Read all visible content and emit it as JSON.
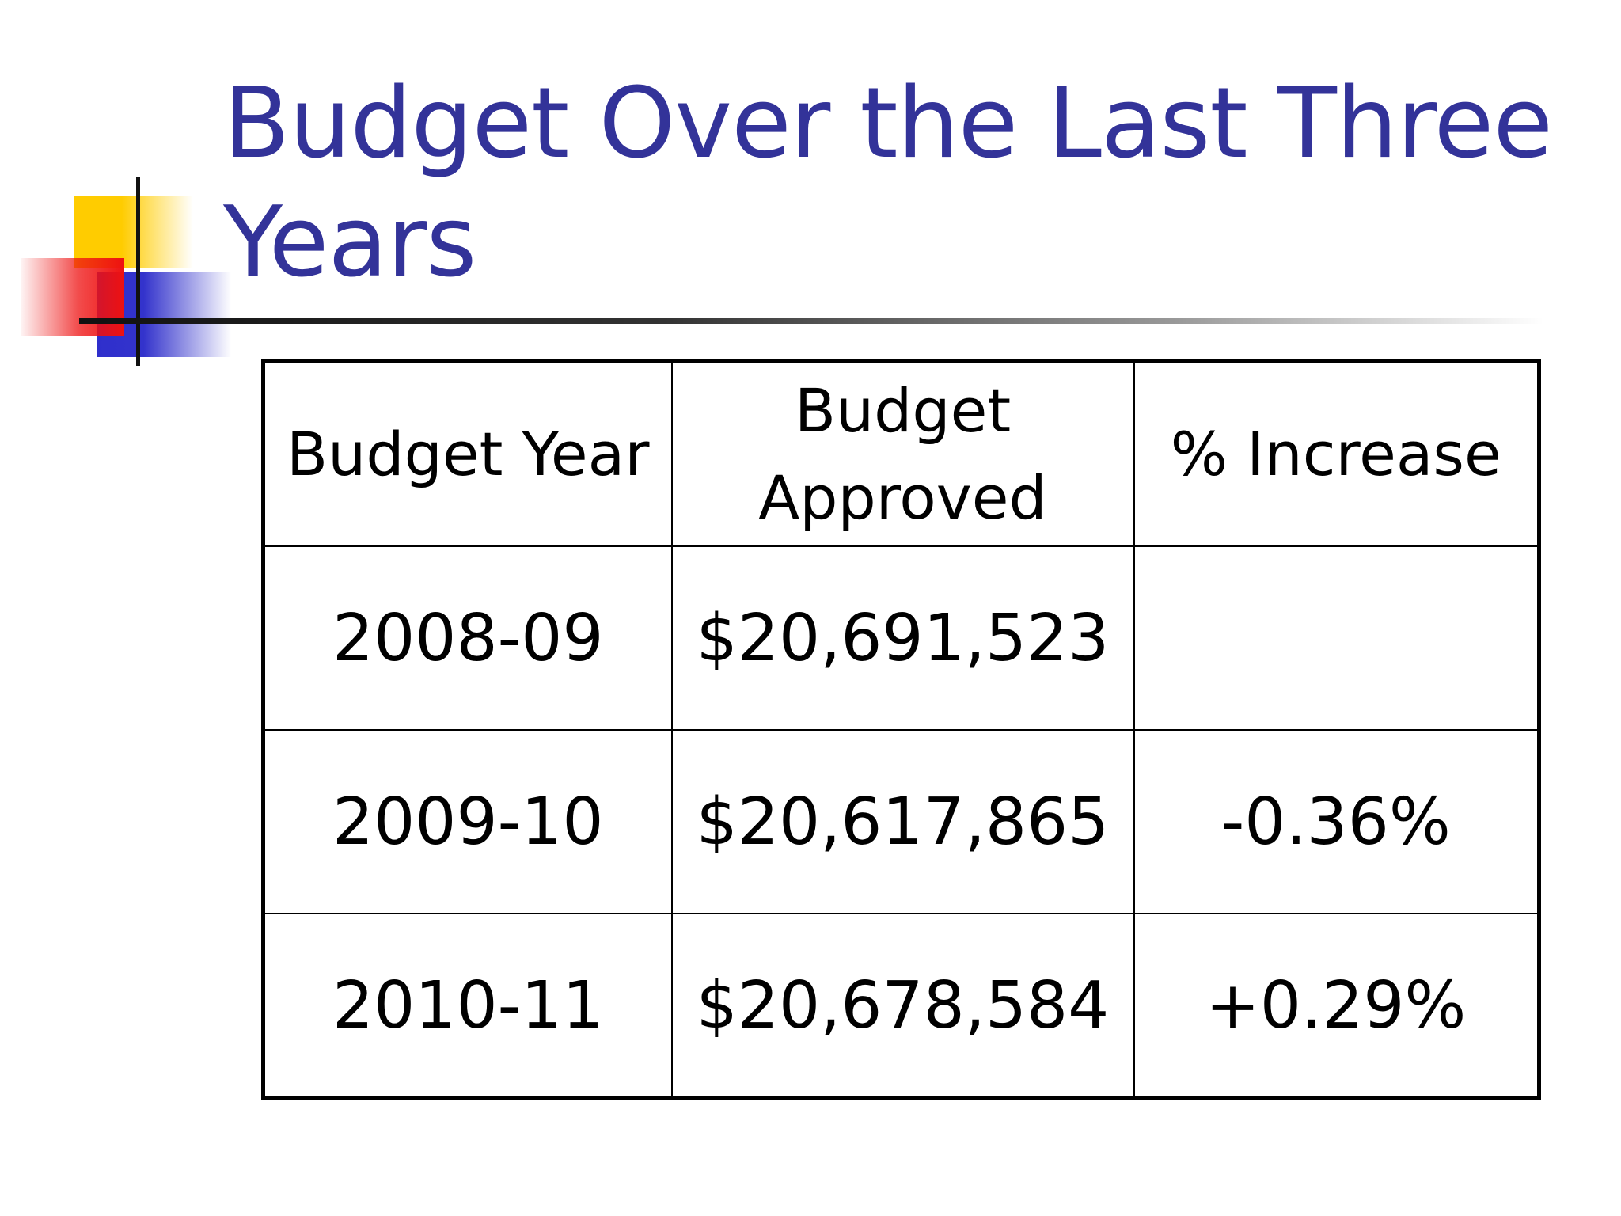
{
  "slide": {
    "title": "Budget Over the Last Three Years"
  },
  "table": {
    "headers": {
      "budget_year": "Budget Year",
      "budget_approved": "Budget Approved",
      "percent_increase": "% Increase"
    },
    "rows": [
      {
        "year": "2008-09",
        "approved": "$20,691,523",
        "increase": ""
      },
      {
        "year": "2009-10",
        "approved": "$20,617,865",
        "increase": "-0.36%"
      },
      {
        "year": "2010-11",
        "approved": "$20,678,584",
        "increase": "+0.29%"
      }
    ]
  },
  "colors": {
    "title": "#333399",
    "deco_yellow": "#ffcc00",
    "deco_red": "#ee1111",
    "deco_blue": "#3333cc"
  }
}
